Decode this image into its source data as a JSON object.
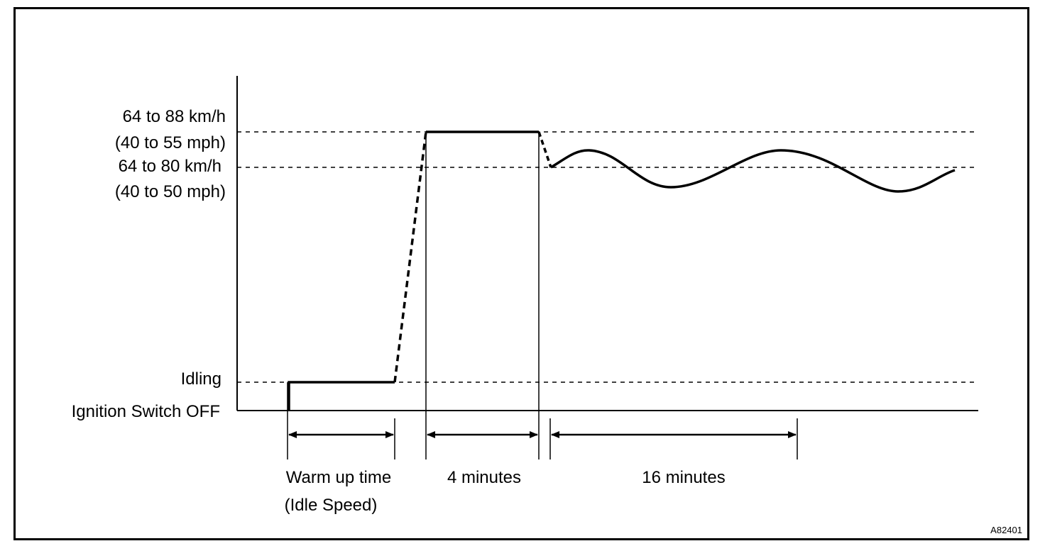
{
  "y_labels": {
    "speed_high_line1": "64 to 88 km/h",
    "speed_high_line2": "(40 to 55 mph)",
    "speed_low_line1": "64 to 80 km/h",
    "speed_low_line2": "(40 to 50 mph)",
    "idling": "Idling",
    "ignition_off": "Ignition Switch OFF"
  },
  "intervals": {
    "warm_up_line1": "Warm up time",
    "warm_up_line2": "(Idle Speed)",
    "four_minutes": "4 minutes",
    "sixteen_minutes": "16 minutes"
  },
  "figure_code": "A82401"
}
